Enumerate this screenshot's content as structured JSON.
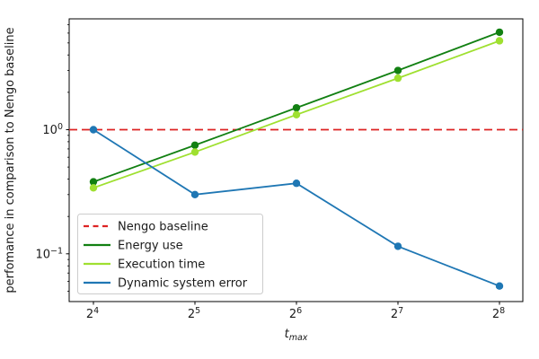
{
  "chart_data": {
    "type": "line",
    "title": "",
    "ylabel": "perfomance in comparison to Nengo baseline",
    "xlabel": {
      "base": "t",
      "sub": "max"
    },
    "yscale": "log",
    "ylim": [
      0.041,
      7.8
    ],
    "grid": false,
    "x_values": [
      16,
      32,
      64,
      128,
      256
    ],
    "x_axis": {
      "tick_labels": [
        {
          "base": "2",
          "exp": "4"
        },
        {
          "base": "2",
          "exp": "5"
        },
        {
          "base": "2",
          "exp": "6"
        },
        {
          "base": "2",
          "exp": "7"
        },
        {
          "base": "2",
          "exp": "8"
        }
      ]
    },
    "y_axis": {
      "major_ticks": [
        {
          "value": 1,
          "base": "10",
          "exp": "0"
        },
        {
          "value": 0.1,
          "base": "10",
          "exp": "−1"
        }
      ],
      "minor_ticks": [
        0.05,
        0.06,
        0.07,
        0.08,
        0.09,
        0.2,
        0.3,
        0.4,
        0.5,
        0.6,
        0.7,
        0.8,
        0.9,
        2,
        3,
        4,
        5,
        6,
        7
      ]
    },
    "baseline": {
      "label": "Nengo baseline",
      "value": 1.0,
      "color": "#dd2323",
      "style": "dashed"
    },
    "series": [
      {
        "name": "Energy use",
        "color": "#128012",
        "marker": "circle",
        "values": [
          0.38,
          0.75,
          1.5,
          3.0,
          6.1
        ]
      },
      {
        "name": "Execution time",
        "color": "#9fe030",
        "marker": "circle",
        "values": [
          0.34,
          0.66,
          1.32,
          2.6,
          5.2
        ]
      },
      {
        "name": "Dynamic system error",
        "color": "#1f77b4",
        "marker": "circle",
        "values": [
          1.0,
          0.3,
          0.37,
          0.115,
          0.055
        ]
      }
    ],
    "legend": {
      "position": "lower left",
      "entries": [
        "Nengo baseline",
        "Energy use",
        "Execution time",
        "Dynamic system error"
      ]
    }
  }
}
